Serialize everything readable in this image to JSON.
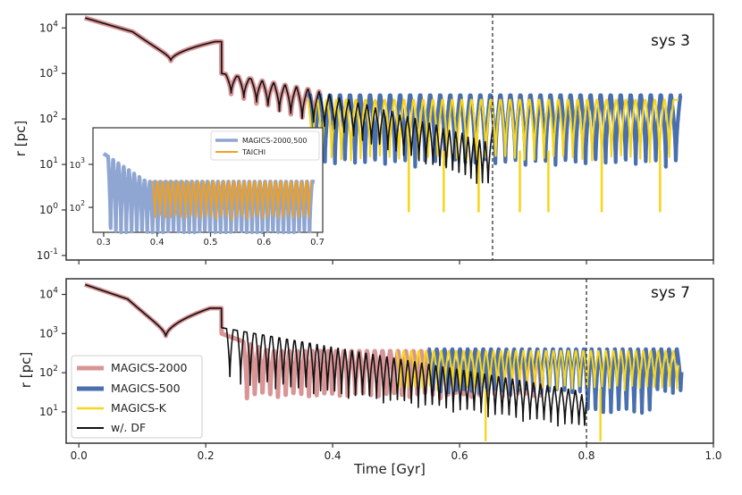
{
  "chart_data": [
    {
      "type": "line",
      "panel": "top",
      "annotation": "sys 3",
      "xlabel": "Time [Gyr]",
      "ylabel": "r [pc]",
      "xlim": [
        -0.02,
        1.0
      ],
      "ylim_log10": [
        -1.1,
        4.3
      ],
      "yscale": "log",
      "y_tick_labels": [
        "10^4",
        "10^3",
        "10^2",
        "10^1",
        "10^0",
        "10^-1"
      ],
      "y_tick_values_log10": [
        4,
        3,
        2,
        1,
        0,
        -1
      ],
      "vline_x": 0.652,
      "series": [
        {
          "name": "MAGICS-2000",
          "color": "#d99496",
          "t_end": 0.38,
          "apo": 2.55,
          "peri": 0.9,
          "spikes": [],
          "hidden_under_df": true
        },
        {
          "name": "MAGICS-500",
          "color": "#4a6faf",
          "t_start": 0.36,
          "t_end": 0.95,
          "apo": 2.52,
          "peri": 0.95,
          "spikes": [
            0.62,
            0.7,
            0.79,
            0.88
          ]
        },
        {
          "name": "MAGICS-K",
          "color": "#f6d61f",
          "t_start": 0.36,
          "t_end": 0.945,
          "apo": 2.42,
          "peri": 0.6,
          "spikes": [
            0.52,
            0.575,
            0.63,
            0.695,
            0.74,
            0.82,
            0.915
          ]
        },
        {
          "name": "w/. DF",
          "color": "#111111",
          "t_end": 0.652
        }
      ],
      "inset": {
        "xlim": [
          0.28,
          0.71
        ],
        "x_tick_labels": [
          "0.3",
          "0.4",
          "0.5",
          "0.6",
          "0.7"
        ],
        "y_tick_labels": [
          "10^3",
          "10^2"
        ],
        "series": [
          {
            "name": "MAGICS-2000,500",
            "color": "#8fa6d2",
            "t_start": 0.3,
            "t_end": 0.695
          },
          {
            "name": "TAICHI",
            "color": "#f0a020",
            "t_start": 0.39,
            "t_end": 0.69
          }
        ]
      }
    },
    {
      "type": "line",
      "panel": "bottom",
      "annotation": "sys 7",
      "xlabel": "Time [Gyr]",
      "ylabel": "r [pc]",
      "xlim": [
        -0.02,
        1.0
      ],
      "ylim_log10": [
        0.2,
        4.4
      ],
      "yscale": "log",
      "x_tick_labels": [
        "0.0",
        "0.2",
        "0.4",
        "0.6",
        "0.8",
        "1.0"
      ],
      "x_tick_values": [
        0.0,
        0.2,
        0.4,
        0.6,
        0.8,
        1.0
      ],
      "y_tick_labels": [
        "10^4",
        "10^3",
        "10^2",
        "10^1"
      ],
      "y_tick_values_log10": [
        4,
        3,
        2,
        1
      ],
      "vline_x": 0.8,
      "series": [
        {
          "name": "MAGICS-2000",
          "color": "#d99496",
          "t_start": 0.24,
          "t_end": 0.73,
          "apo": 2.55,
          "peri": 1.3
        },
        {
          "name": "MAGICS-500",
          "color": "#4a6faf",
          "t_start": 0.55,
          "t_end": 0.95,
          "apo": 2.6,
          "peri": 1.2
        },
        {
          "name": "MAGICS-K",
          "color": "#f6d61f",
          "t_start": 0.5,
          "t_end": 0.945,
          "apo": 2.55,
          "peri": 1.5,
          "spikes": [
            0.64,
            0.82
          ]
        },
        {
          "name": "w/. DF",
          "color": "#111111",
          "t_end": 0.8
        }
      ]
    }
  ],
  "legend": {
    "items": [
      {
        "label": "MAGICS-2000",
        "color": "#d99496"
      },
      {
        "label": "MAGICS-500",
        "color": "#4a6faf"
      },
      {
        "label": "MAGICS-K",
        "color": "#f6d61f"
      },
      {
        "label": "w/. DF",
        "color": "#111111"
      }
    ]
  }
}
